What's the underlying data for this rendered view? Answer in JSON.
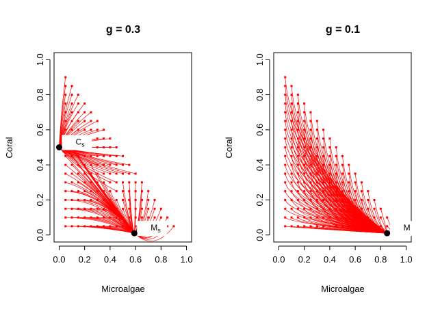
{
  "chart_data": [
    {
      "type": "line",
      "title": "g = 0.3",
      "xlabel": "Microalgae",
      "ylabel": "Coral",
      "xlim": [
        0,
        1
      ],
      "ylim": [
        0,
        1
      ],
      "x_ticks": [
        "0.0",
        "0.2",
        "0.4",
        "0.6",
        "0.8",
        "1.0"
      ],
      "y_ticks": [
        "0.0",
        "0.2",
        "0.4",
        "0.6",
        "0.8",
        "1.0"
      ],
      "series_color": "#ff0000",
      "description_of_series": "trajectories from a grid of start points (x,y in 0.05..0.9) toward two stable equilibria",
      "equilibria": [
        {
          "name": "C",
          "sub": "s",
          "x": 0.0,
          "y": 0.5
        },
        {
          "name": "M",
          "sub": "s",
          "x": 0.59,
          "y": 0.01
        }
      ]
    },
    {
      "type": "line",
      "title": "g = 0.1",
      "xlabel": "Microalgae",
      "ylabel": "Coral",
      "xlim": [
        0,
        1
      ],
      "ylim": [
        0,
        1
      ],
      "x_ticks": [
        "0.0",
        "0.2",
        "0.4",
        "0.6",
        "0.8",
        "1.0"
      ],
      "y_ticks": [
        "0.0",
        "0.2",
        "0.4",
        "0.6",
        "0.8",
        "1.0"
      ],
      "series_color": "#ff0000",
      "equilibria": [
        {
          "name": "M",
          "sub": "",
          "x": 0.85,
          "y": 0.01
        }
      ]
    }
  ]
}
